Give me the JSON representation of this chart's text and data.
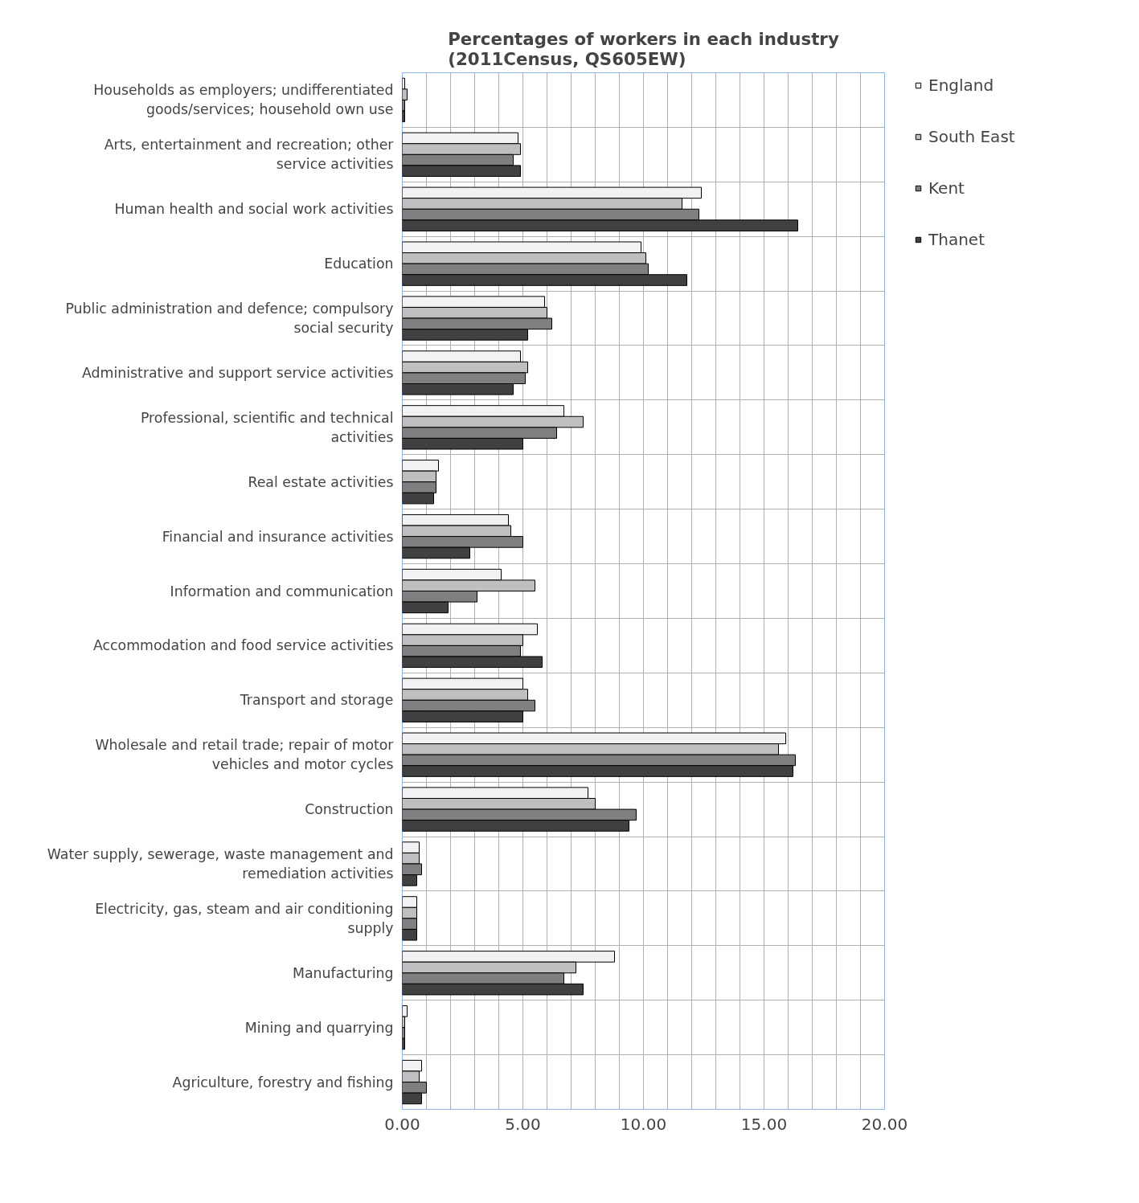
{
  "chart_data": {
    "type": "bar",
    "orientation": "horizontal",
    "title": "Percentages of workers in each industry (2011Census, QS605EW)",
    "categories": [
      "Households as employers; undifferentiated goods/services; household own use",
      "Arts, entertainment and recreation; other service activities",
      "Human health and social work activities",
      "Education",
      "Public administration and defence; compulsory social security",
      "Administrative and support service activities",
      "Professional, scientific and technical activities",
      "Real estate activities",
      "Financial and insurance activities",
      "Information and communication",
      "Accommodation and food service activities",
      "Transport and storage",
      "Wholesale and retail trade; repair of motor vehicles and motor cycles",
      "Construction",
      "Water supply, sewerage, waste management and remediation activities",
      "Electricity, gas, steam and air conditioning supply",
      "Manufacturing",
      "Mining and quarrying",
      "Agriculture, forestry and fishing"
    ],
    "series": [
      {
        "name": "England",
        "color": "#f2f2f2",
        "values": [
          0.1,
          4.8,
          12.4,
          9.9,
          5.9,
          4.9,
          6.7,
          1.5,
          4.4,
          4.1,
          5.6,
          5.0,
          15.9,
          7.7,
          0.7,
          0.6,
          8.8,
          0.2,
          0.8
        ]
      },
      {
        "name": "South East",
        "color": "#bfbfbf",
        "values": [
          0.2,
          4.9,
          11.6,
          10.1,
          6.0,
          5.2,
          7.5,
          1.4,
          4.5,
          5.5,
          5.0,
          5.2,
          15.6,
          8.0,
          0.7,
          0.6,
          7.2,
          0.1,
          0.7
        ]
      },
      {
        "name": "Kent",
        "color": "#7f7f7f",
        "values": [
          0.1,
          4.6,
          12.3,
          10.2,
          6.2,
          5.1,
          6.4,
          1.4,
          5.0,
          3.1,
          4.9,
          5.5,
          16.3,
          9.7,
          0.8,
          0.6,
          6.7,
          0.1,
          1.0
        ]
      },
      {
        "name": "Thanet",
        "color": "#404040",
        "values": [
          0.1,
          4.9,
          16.4,
          11.8,
          5.2,
          4.6,
          5.0,
          1.3,
          2.8,
          1.9,
          5.8,
          5.0,
          16.2,
          9.4,
          0.6,
          0.6,
          7.5,
          0.1,
          0.8
        ]
      }
    ],
    "xlim": [
      0,
      20
    ],
    "xticks": [
      {
        "value": 0,
        "label": "0.00"
      },
      {
        "value": 1,
        "label": null
      },
      {
        "value": 2,
        "label": null
      },
      {
        "value": 3,
        "label": null
      },
      {
        "value": 4,
        "label": null
      },
      {
        "value": 5,
        "label": "5.00"
      },
      {
        "value": 6,
        "label": null
      },
      {
        "value": 7,
        "label": null
      },
      {
        "value": 8,
        "label": null
      },
      {
        "value": 9,
        "label": null
      },
      {
        "value": 10,
        "label": "10.00"
      },
      {
        "value": 11,
        "label": null
      },
      {
        "value": 12,
        "label": null
      },
      {
        "value": 13,
        "label": null
      },
      {
        "value": 14,
        "label": null
      },
      {
        "value": 15,
        "label": "15.00"
      },
      {
        "value": 16,
        "label": null
      },
      {
        "value": 17,
        "label": null
      },
      {
        "value": 18,
        "label": null
      },
      {
        "value": 19,
        "label": null
      },
      {
        "value": 20,
        "label": "20.00"
      }
    ],
    "grid": true,
    "legend": "right"
  }
}
